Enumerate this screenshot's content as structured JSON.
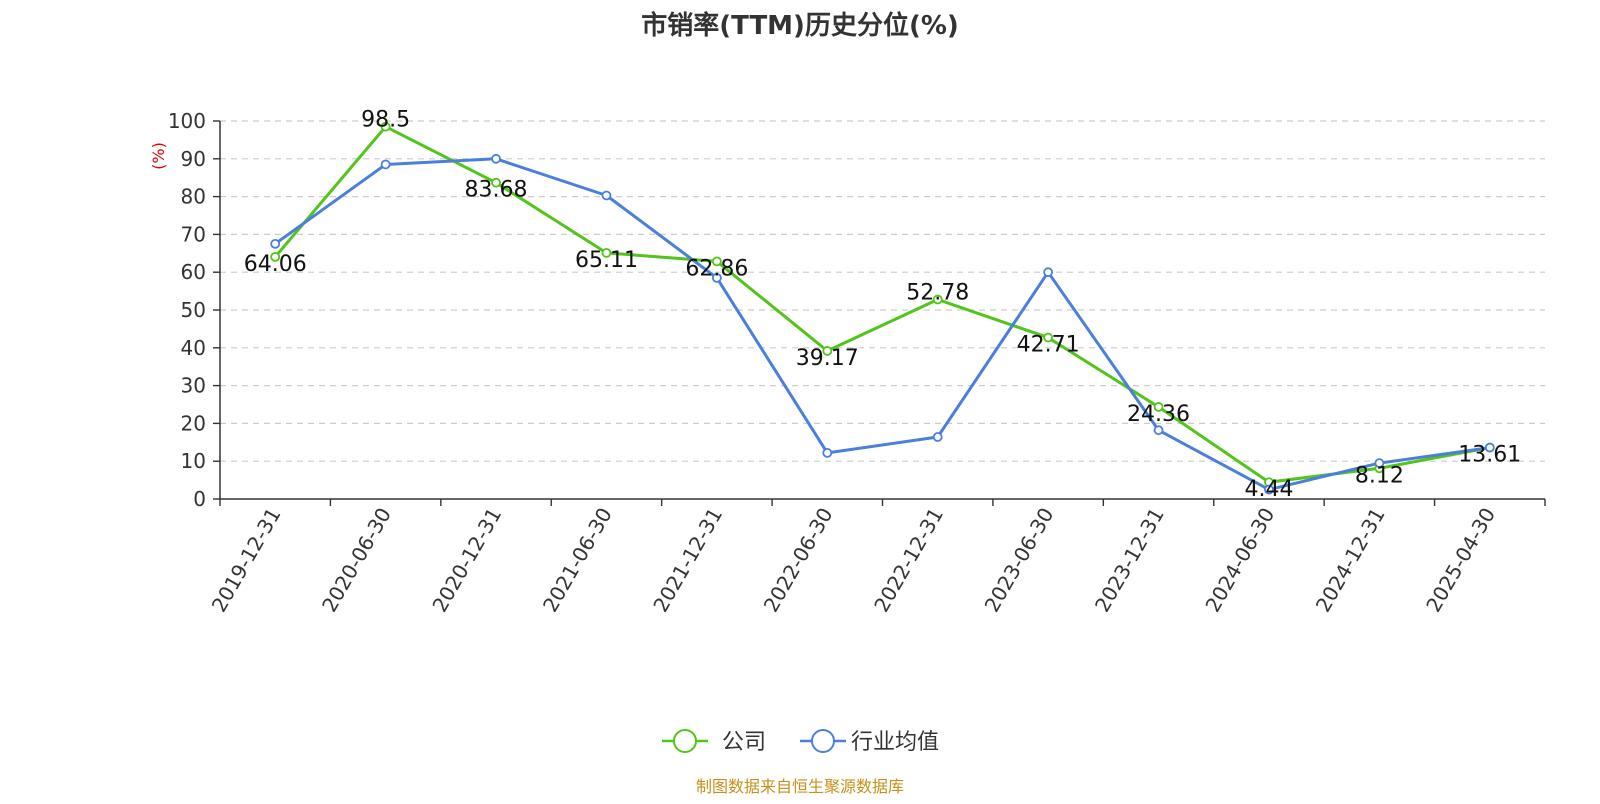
{
  "chart_data": {
    "type": "line",
    "title": "市销率(TTM)历史分位(%)",
    "ylabel": "(%)",
    "xlabel": "",
    "ylim": [
      0,
      100
    ],
    "yticks": [
      0,
      10,
      20,
      30,
      40,
      50,
      60,
      70,
      80,
      90,
      100
    ],
    "grid": "horizontal dashed",
    "legend_position": "bottom",
    "categories": [
      "2019-12-31",
      "2020-06-30",
      "2020-12-31",
      "2021-06-30",
      "2021-12-31",
      "2022-06-30",
      "2022-12-31",
      "2023-06-30",
      "2023-12-31",
      "2024-06-30",
      "2024-12-31",
      "2025-04-30"
    ],
    "series": [
      {
        "name": "公司",
        "color": "#52c41a",
        "values": [
          64.06,
          98.5,
          83.68,
          65.11,
          62.86,
          39.17,
          52.78,
          42.71,
          24.36,
          4.44,
          8.12,
          13.61
        ],
        "labels": [
          "64.06",
          "98.5",
          "83.68",
          "65.11",
          "62.86",
          "39.17",
          "52.78",
          "42.71",
          "24.36",
          "4.44",
          "8.12",
          "13.61"
        ]
      },
      {
        "name": "行业均值",
        "color": "#4a7fdb",
        "values": [
          67.5,
          88.5,
          90.0,
          80.3,
          58.5,
          12.2,
          16.4,
          60.0,
          18.2,
          2.5,
          9.5,
          13.6
        ]
      }
    ],
    "unit_color": "#e60000",
    "source": "制图数据来自恒生聚源数据库",
    "source_color": "#c8901a"
  }
}
